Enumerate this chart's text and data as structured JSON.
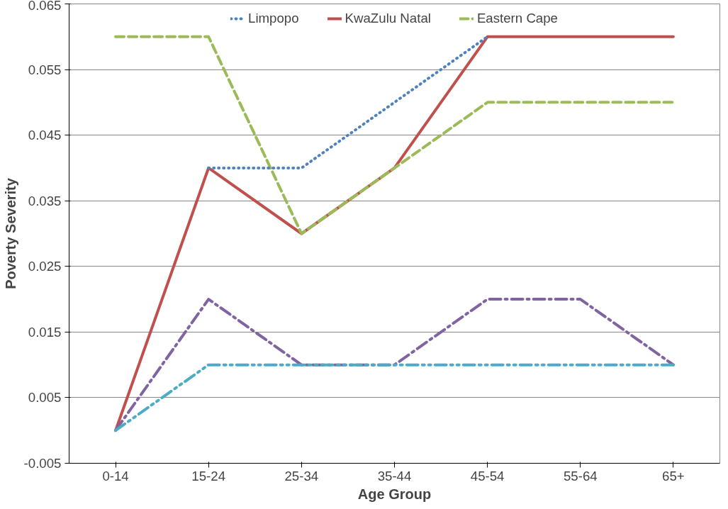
{
  "chart_data": {
    "type": "line",
    "xlabel": "Age Group",
    "ylabel": "Poverty Severity",
    "categories": [
      "0-14",
      "15-24",
      "25-34",
      "35-44",
      "45-54",
      "55-64",
      "65+"
    ],
    "ylim": [
      -0.005,
      0.065
    ],
    "yticks": [
      -0.005,
      0.005,
      0.015,
      0.025,
      0.035,
      0.045,
      0.055,
      0.065
    ],
    "grid": "y",
    "legend": "top",
    "series": [
      {
        "name": "Limpopo",
        "color": "#4f81bd",
        "line_style": "dotted",
        "values": [
          null,
          0.04,
          0.04,
          0.05,
          0.06,
          null,
          null
        ]
      },
      {
        "name": "KwaZulu Natal",
        "color": "#c0504d",
        "line_style": "solid",
        "values": [
          0,
          0.04,
          0.03,
          0.04,
          0.06,
          0.06,
          0.06
        ]
      },
      {
        "name": "Eastern Cape",
        "color": "#9bbb59",
        "line_style": "dashed",
        "values": [
          0.06,
          0.06,
          0.03,
          0.04,
          0.05,
          0.05,
          0.05
        ]
      },
      {
        "color": "#8064a2",
        "line_style": "dashdot",
        "values": [
          0,
          0.02,
          0.01,
          0.01,
          0.02,
          0.02,
          0.01
        ]
      },
      {
        "color": "#4bacc6",
        "line_style": "dashdotdot",
        "values": [
          0,
          0.01,
          0.01,
          0.01,
          0.01,
          0.01,
          0.01
        ]
      }
    ]
  }
}
